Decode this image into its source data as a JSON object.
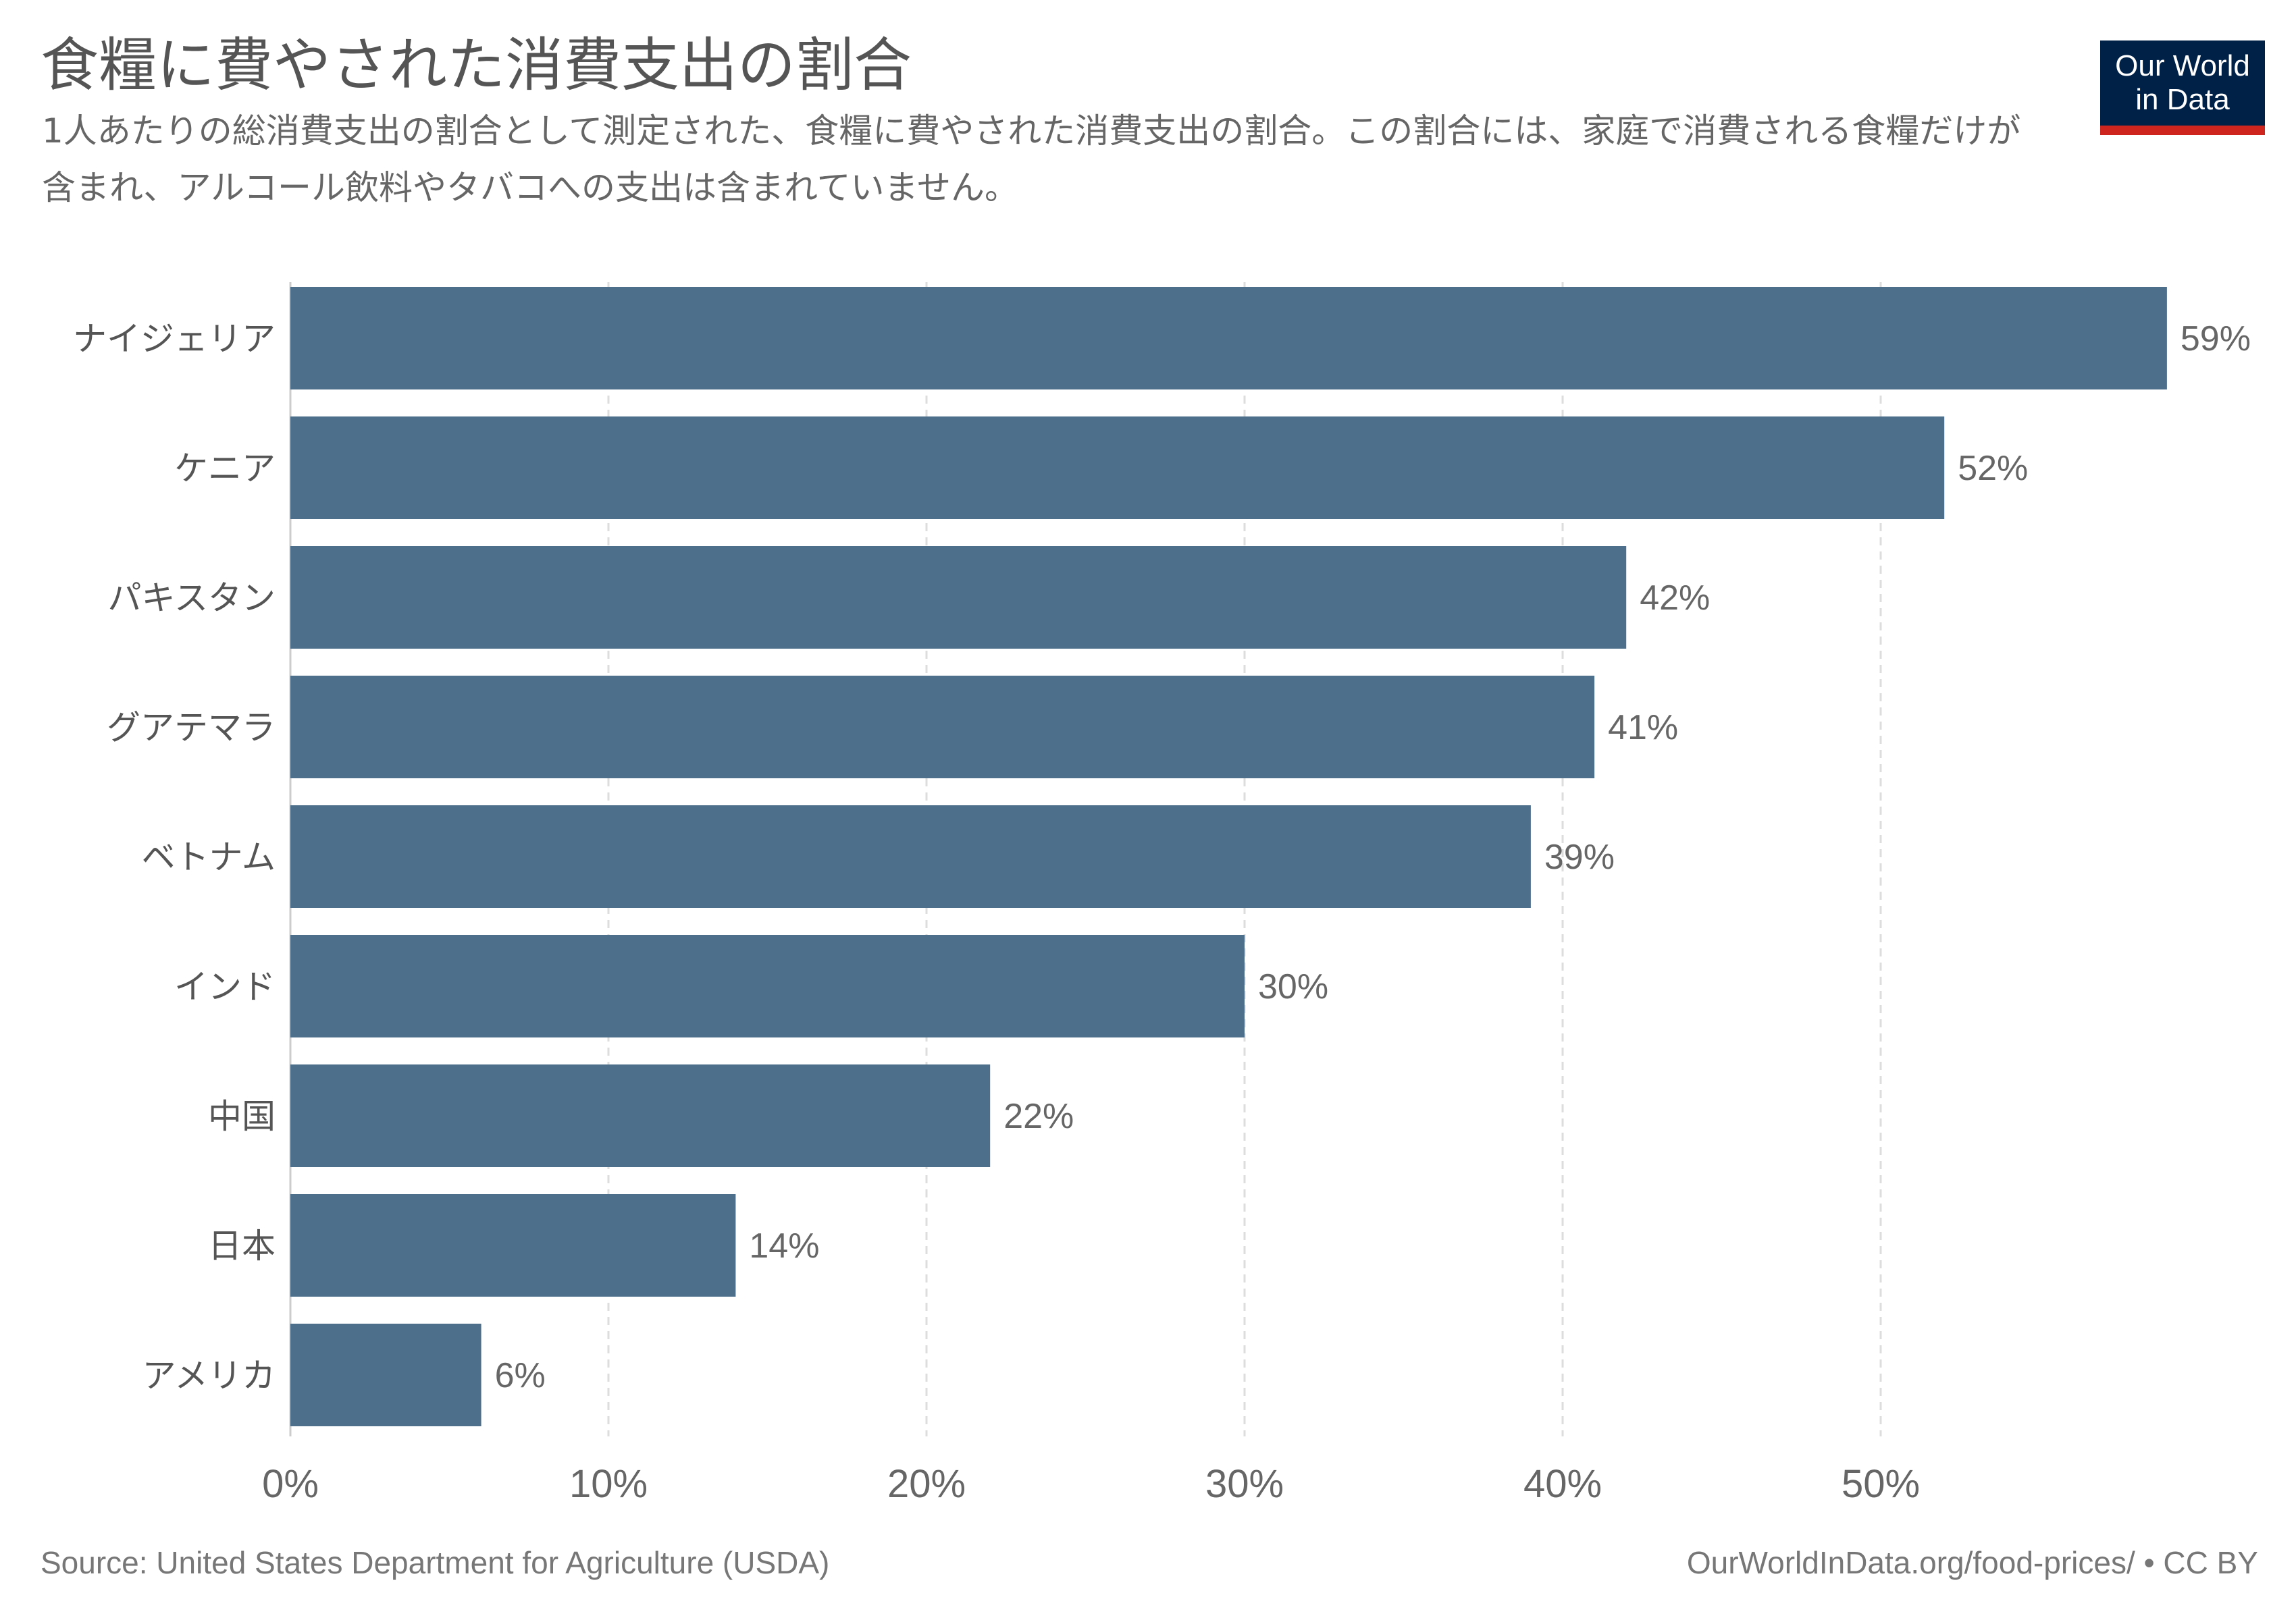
{
  "header": {
    "title": "食糧に費やされた消費支出の割合",
    "subtitle": "1人あたりの総消費支出の割合として測定された、食糧に費やされた消費支出の割合。この割合には、家庭で消費される食糧だけが含まれ、アルコール飲料やタバコへの支出は含まれていません。"
  },
  "logo": {
    "line1": "Our World",
    "line2": "in Data"
  },
  "footer": {
    "source": "Source: United States Department for Agriculture (USDA)",
    "license": "OurWorldInData.org/food-prices/ • CC BY"
  },
  "colors": {
    "bar": "#4e6f8c",
    "grid": "#dddddd",
    "logo_background": "#002147",
    "logo_accent": "#ce261e"
  },
  "chart_data": {
    "type": "bar",
    "orientation": "horizontal",
    "categories": [
      "ナイジェリア",
      "ケニア",
      "パキスタン",
      "グアテマラ",
      "ベトナム",
      "インド",
      "中国",
      "日本",
      "アメリカ"
    ],
    "values": [
      59,
      52,
      42,
      41,
      39,
      30,
      22,
      14,
      6
    ],
    "value_labels": [
      "59%",
      "52%",
      "42%",
      "41%",
      "39%",
      "30%",
      "22%",
      "14%",
      "6%"
    ],
    "unit": "%",
    "x_ticks": [
      0,
      10,
      20,
      30,
      40,
      50
    ],
    "x_tick_labels": [
      "0%",
      "10%",
      "20%",
      "30%",
      "40%",
      "50%"
    ],
    "xlim": [
      0,
      59
    ],
    "grid": true,
    "grid_style": "dashed vertical"
  }
}
